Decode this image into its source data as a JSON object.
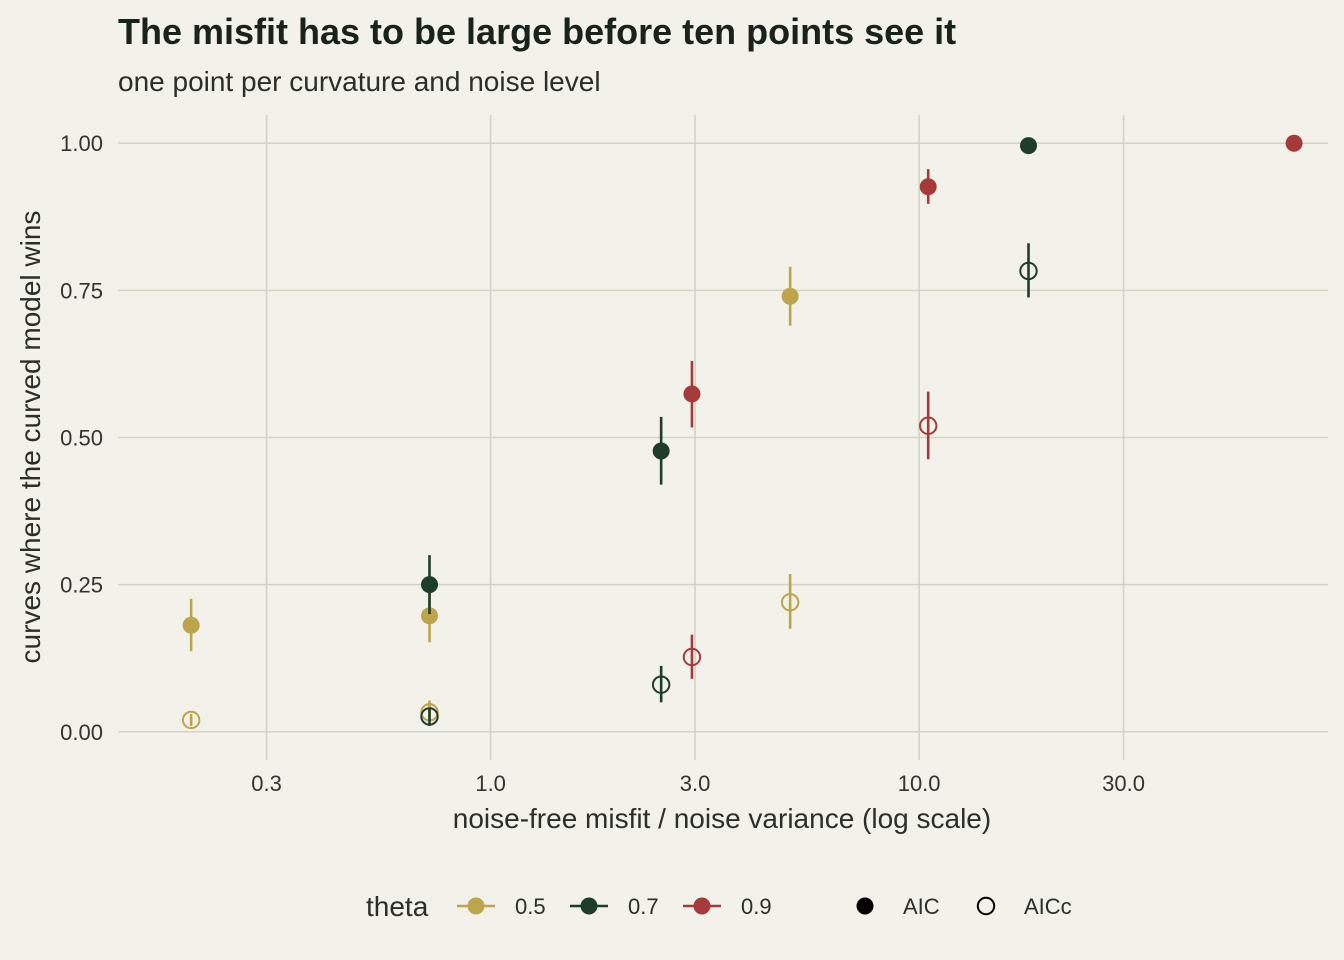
{
  "chart_data": {
    "type": "scatter",
    "title": "The misfit has to be large before ten points see it",
    "subtitle": "one point per curvature and noise level",
    "xlabel": "noise-free misfit / noise variance (log scale)",
    "ylabel": "curves where the curved model wins",
    "x_scale": "log10",
    "xlim": [
      0.135,
      90
    ],
    "ylim": [
      -0.048,
      1.048
    ],
    "x_ticks": [
      0.3,
      1.0,
      3.0,
      10.0,
      30.0
    ],
    "x_tick_labels": [
      "0.3",
      "1.0",
      "3.0",
      "10.0",
      "30.0"
    ],
    "y_ticks": [
      0,
      0.25,
      0.5,
      0.75,
      1.0
    ],
    "y_tick_labels": [
      "0.00",
      "0.25",
      "0.50",
      "0.75",
      "1.00"
    ],
    "grid": true,
    "legend_position": "bottom",
    "legend": {
      "color_title": "theta",
      "color_entries": [
        {
          "label": "0.5",
          "theta": "0.5"
        },
        {
          "label": "0.7",
          "theta": "0.7"
        },
        {
          "label": "0.9",
          "theta": "0.9"
        }
      ],
      "shape_entries": [
        {
          "label": "AIC",
          "criterion": "AIC"
        },
        {
          "label": "AICc",
          "criterion": "AICc"
        }
      ]
    },
    "colors": {
      "0.5": "#bca54a",
      "0.7": "#1f3d2b",
      "0.9": "#a63a3a"
    },
    "points": [
      {
        "theta": "0.5",
        "criterion": "AIC",
        "x": 0.2,
        "y": 0.181,
        "ymin": 0.137,
        "ymax": 0.226
      },
      {
        "theta": "0.5",
        "criterion": "AICc",
        "x": 0.2,
        "y": 0.02,
        "ymin": 0.01,
        "ymax": 0.03
      },
      {
        "theta": "0.5",
        "criterion": "AIC",
        "x": 0.72,
        "y": 0.197,
        "ymin": 0.152,
        "ymax": 0.242
      },
      {
        "theta": "0.5",
        "criterion": "AICc",
        "x": 0.72,
        "y": 0.033,
        "ymin": 0.018,
        "ymax": 0.053
      },
      {
        "theta": "0.5",
        "criterion": "AIC",
        "x": 5.0,
        "y": 0.74,
        "ymin": 0.69,
        "ymax": 0.79
      },
      {
        "theta": "0.5",
        "criterion": "AICc",
        "x": 5.0,
        "y": 0.22,
        "ymin": 0.175,
        "ymax": 0.268
      },
      {
        "theta": "0.7",
        "criterion": "AIC",
        "x": 0.72,
        "y": 0.25,
        "ymin": 0.2,
        "ymax": 0.3
      },
      {
        "theta": "0.7",
        "criterion": "AICc",
        "x": 0.72,
        "y": 0.026,
        "ymin": 0.01,
        "ymax": 0.04
      },
      {
        "theta": "0.7",
        "criterion": "AIC",
        "x": 2.5,
        "y": 0.477,
        "ymin": 0.42,
        "ymax": 0.535
      },
      {
        "theta": "0.7",
        "criterion": "AICc",
        "x": 2.5,
        "y": 0.08,
        "ymin": 0.05,
        "ymax": 0.112
      },
      {
        "theta": "0.7",
        "criterion": "AIC",
        "x": 18.0,
        "y": 0.996,
        "ymin": 0.992,
        "ymax": 1.0
      },
      {
        "theta": "0.7",
        "criterion": "AICc",
        "x": 18.0,
        "y": 0.783,
        "ymin": 0.738,
        "ymax": 0.83
      },
      {
        "theta": "0.9",
        "criterion": "AIC",
        "x": 2.95,
        "y": 0.574,
        "ymin": 0.517,
        "ymax": 0.63
      },
      {
        "theta": "0.9",
        "criterion": "AICc",
        "x": 2.95,
        "y": 0.127,
        "ymin": 0.09,
        "ymax": 0.165
      },
      {
        "theta": "0.9",
        "criterion": "AIC",
        "x": 10.5,
        "y": 0.926,
        "ymin": 0.897,
        "ymax": 0.956
      },
      {
        "theta": "0.9",
        "criterion": "AICc",
        "x": 10.5,
        "y": 0.52,
        "ymin": 0.463,
        "ymax": 0.578
      },
      {
        "theta": "0.9",
        "criterion": "AIC",
        "x": 75.0,
        "y": 1.0,
        "ymin": 1.0,
        "ymax": 1.0
      }
    ]
  }
}
